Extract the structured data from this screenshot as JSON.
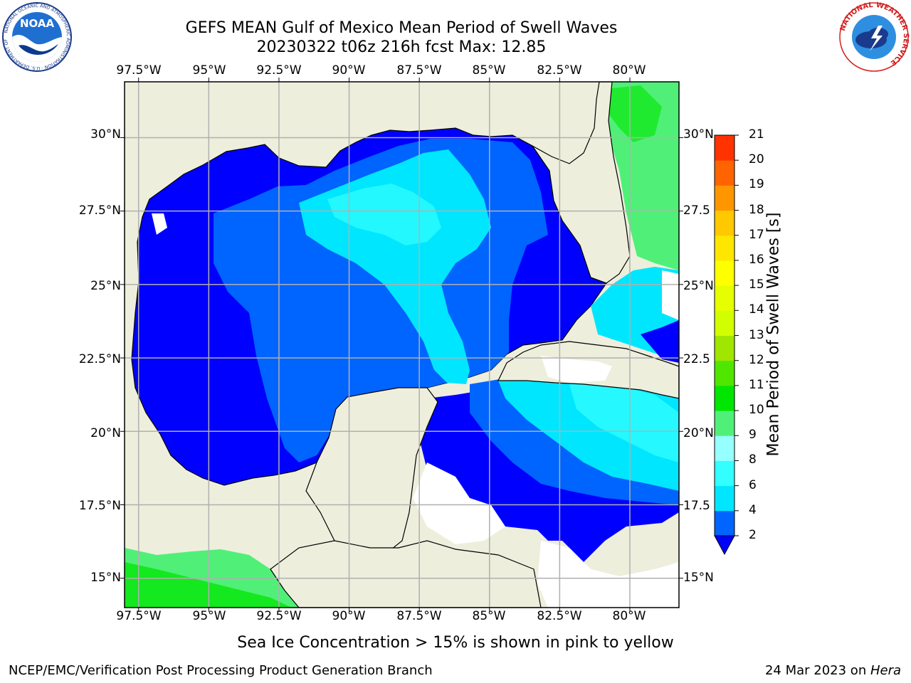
{
  "header": {
    "title_line1": "GEFS MEAN Gulf of Mexico Mean Period of Swell Waves",
    "title_line2": "20230322 t06z 216h fcst   Max: 12.85"
  },
  "logos": {
    "left_org": "NOAA",
    "left_ring_text": "NATIONAL OCEANIC AND ATMOSPHERIC ADMINISTRATION · U.S. DEPARTMENT OF COMMERCE",
    "right_ring_text": "NATIONAL WEATHER SERVICE"
  },
  "map": {
    "lon_labels": [
      "97.5°W",
      "95°W",
      "92.5°W",
      "90°W",
      "87.5°W",
      "85°W",
      "82.5°W",
      "80°W"
    ],
    "lat_labels_left": [
      "30°N",
      "27.5°N",
      "25°N",
      "22.5°N",
      "20°N",
      "17.5°N",
      "15°N"
    ],
    "lat_labels_right": [
      "30°N",
      "27.5",
      "25°N",
      "22.5",
      "20°N",
      "17.5",
      "15°N"
    ],
    "lon_range": [
      -98,
      -78.25
    ],
    "lat_range": [
      14,
      31.9
    ],
    "grid_lons": [
      -97.5,
      -95,
      -92.5,
      -90,
      -87.5,
      -85,
      -82.5,
      -80
    ],
    "grid_lats": [
      30,
      27.5,
      25,
      22.5,
      20,
      17.5,
      15
    ],
    "land_color": "#eeeedd",
    "grid_color": "#b0b0b0"
  },
  "colorbar": {
    "label": "Mean Period of Swell Waves [s]",
    "ticks": [
      "2",
      "4",
      "6",
      "8",
      "9",
      "10",
      "11",
      "12",
      "13",
      "14",
      "15",
      "16",
      "17",
      "18",
      "19",
      "20",
      "21"
    ],
    "colors": [
      "#0064ff",
      "#00e6ff",
      "#32ffff",
      "#96ffff",
      "#50f078",
      "#00e600",
      "#50e600",
      "#a0e600",
      "#d2ff00",
      "#e6ff00",
      "#ffff00",
      "#ffe600",
      "#ffc800",
      "#ff9600",
      "#ff6400",
      "#ff3200",
      "#ff0000"
    ],
    "extend_color": "#0000ff"
  },
  "chart_data": {
    "type": "heatmap",
    "title": "GEFS MEAN Gulf of Mexico Mean Period of Swell Waves",
    "subtitle": "20230322 t06z 216h fcst   Max: 12.85",
    "units": "s",
    "max": 12.85,
    "colorbar_ticks": [
      2,
      4,
      6,
      8,
      9,
      10,
      11,
      12,
      13,
      14,
      15,
      16,
      17,
      18,
      19,
      20,
      21
    ]
  },
  "notes": {
    "sea_ice": "Sea Ice Concentration > 15% is shown in pink to yellow"
  },
  "footer": {
    "left": "NCEP/EMC/Verification Post Processing Product Generation Branch",
    "right_prefix": "24 Mar 2023 on ",
    "right_host": "Hera"
  }
}
